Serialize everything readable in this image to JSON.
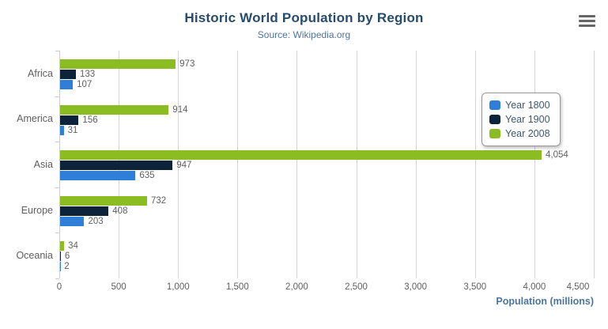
{
  "chart_data": {
    "type": "bar",
    "title": "Historic World Population by Region",
    "subtitle": "Source: Wikipedia.org",
    "categories": [
      "Africa",
      "America",
      "Asia",
      "Europe",
      "Oceania"
    ],
    "series": [
      {
        "name": "Year 1800",
        "color": "#2f7ed8",
        "values": [
          107,
          31,
          635,
          203,
          2
        ]
      },
      {
        "name": "Year 1900",
        "color": "#0d233a",
        "values": [
          133,
          156,
          947,
          408,
          6
        ]
      },
      {
        "name": "Year 2008",
        "color": "#8bbc21",
        "values": [
          973,
          914,
          4054,
          732,
          34
        ]
      }
    ],
    "series_display_order": "last series on top of each group",
    "xlabel": "Population (millions)",
    "ylabel": "",
    "xlim": [
      0,
      4500
    ],
    "xticks": [
      0,
      500,
      1000,
      1500,
      2000,
      2500,
      3000,
      3500,
      4000,
      4500
    ],
    "grid": true,
    "data_labels": true,
    "legend_position": "right"
  },
  "icons": {
    "menu": "hamburger-icon"
  },
  "colors": {
    "title": "#274b6d",
    "subtitle": "#4d759e",
    "axis_title": "#4d759e",
    "grid_line": "#d3d3d3",
    "axis_line": "#c0d0e0",
    "tick_label": "#606060",
    "data_label": "#606060",
    "legend_text": "#3e576f",
    "legend_border": "#999999",
    "menu_icon": "#666666"
  }
}
